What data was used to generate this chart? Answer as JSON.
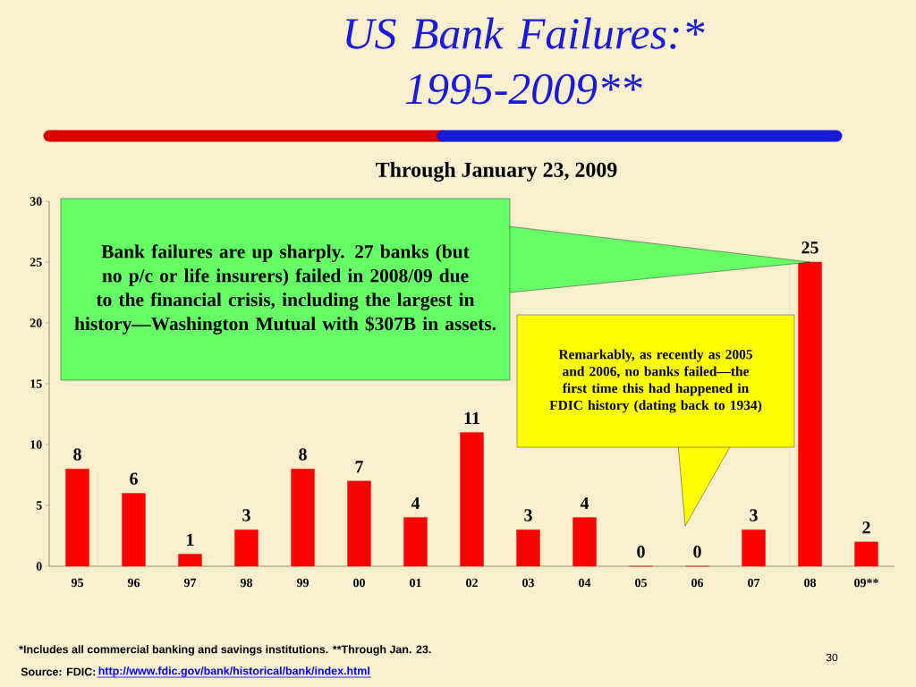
{
  "chart_data": {
    "type": "bar",
    "title": "US Bank Failures:* 1995-2009**",
    "subtitle": "Through January 23, 2009",
    "categories": [
      "95",
      "96",
      "97",
      "98",
      "99",
      "00",
      "01",
      "02",
      "03",
      "04",
      "05",
      "06",
      "07",
      "08",
      "09**"
    ],
    "values": [
      8,
      6,
      1,
      3,
      8,
      7,
      4,
      11,
      3,
      4,
      0,
      0,
      3,
      25,
      2
    ],
    "color": "#ff0000",
    "ylim": [
      0,
      30
    ],
    "yticks": [
      0,
      5,
      10,
      15,
      20,
      25,
      30
    ],
    "data_labels": true,
    "annotations": [
      {
        "text": "Bank failures are up sharply. 27 banks (but no p/c or life insurers) failed in 2008/09 due to the financial crisis, including the largest in history—Washington Mutual with $307B in assets.",
        "x": "08",
        "y": 25
      },
      "Remarkably, as recently as 2005 and 2006, no banks failed—the first time this had happened in FDIC history (dating back to 1934)",
      "*Includes all commercial banking and savings institutions.  **Through Jan. 23.",
      "Source: FDIC:",
      "http://www.fdic.gov/bank/historical/bank/index.html",
      "30"
    ]
  }
}
